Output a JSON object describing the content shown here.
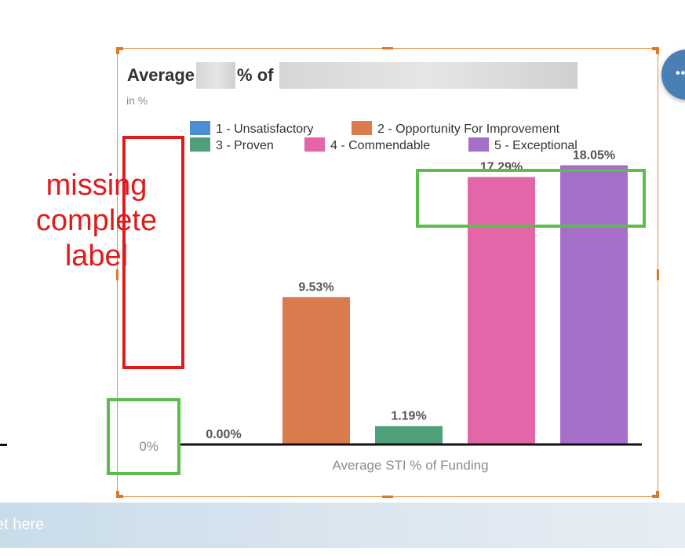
{
  "widget": {
    "title_prefix": "Average",
    "title_mid": "% of",
    "unit": "in %"
  },
  "annotations": {
    "note_lines": [
      "missing",
      "complete",
      "label"
    ],
    "color_red": "#e01b1b",
    "color_green": "#5dbd4c"
  },
  "chatbar": {
    "placeholder": "et here"
  },
  "fab": {
    "icon": "more-dots-icon",
    "glyph": "••"
  },
  "chart_data": {
    "type": "bar",
    "title": "",
    "xlabel": "Average STI % of Funding",
    "ylabel": "",
    "y_tick_labels": [
      "0%"
    ],
    "ylim": [
      0,
      20
    ],
    "grid": false,
    "legend_position": "top",
    "series": [
      {
        "name": "1 - Unsatisfactory",
        "value": 0.0,
        "label": "0.00%",
        "color": "#4a8fd4"
      },
      {
        "name": "2 - Opportunity For Improvement",
        "value": 9.53,
        "label": "9.53%",
        "color": "#d97b4d"
      },
      {
        "name": "3 - Proven",
        "value": 1.19,
        "label": "1.19%",
        "color": "#4fa07a"
      },
      {
        "name": "4 - Commendable",
        "value": 17.29,
        "label": "17.29%",
        "color": "#e466a8"
      },
      {
        "name": "5 - Exceptional",
        "value": 18.05,
        "label": "18.05%",
        "color": "#a56ec9"
      }
    ]
  }
}
